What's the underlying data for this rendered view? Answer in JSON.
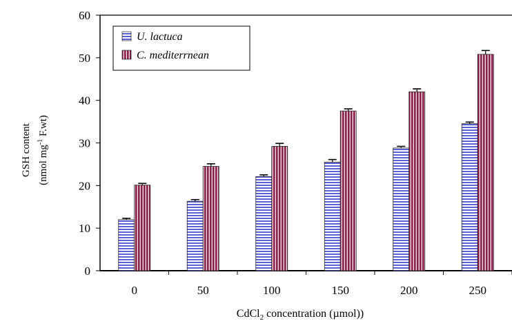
{
  "chart_data": {
    "type": "bar",
    "categories": [
      "0",
      "50",
      "100",
      "150",
      "200",
      "250"
    ],
    "series": [
      {
        "name": "U. lactuca",
        "values": [
          12.0,
          16.3,
          22.1,
          25.5,
          28.8,
          34.5
        ],
        "errors": [
          0.3,
          0.4,
          0.4,
          0.6,
          0.4,
          0.4
        ],
        "color": "#6b6ee0",
        "pattern": "horizontal-stripes"
      },
      {
        "name": "C. mediterrnean",
        "values": [
          20.1,
          24.5,
          29.2,
          37.5,
          42.0,
          50.8
        ],
        "errors": [
          0.4,
          0.6,
          0.7,
          0.5,
          0.7,
          0.9
        ],
        "color": "#8b2a52",
        "pattern": "vertical-stripes"
      }
    ],
    "ylim": [
      0,
      60
    ],
    "yticks": [
      "0",
      "10",
      "20",
      "30",
      "40",
      "50",
      "60"
    ],
    "ylabel_line1": "GSH content",
    "ylabel_line2_pre": "(nmol mg",
    "ylabel_line2_sup": "-1",
    "ylabel_line2_post": " F.wt)",
    "xlabel_pre": "CdCl",
    "xlabel_sub": "2",
    "xlabel_post": " concentration (µmol))",
    "legend_position": "top-left",
    "grid": false
  }
}
